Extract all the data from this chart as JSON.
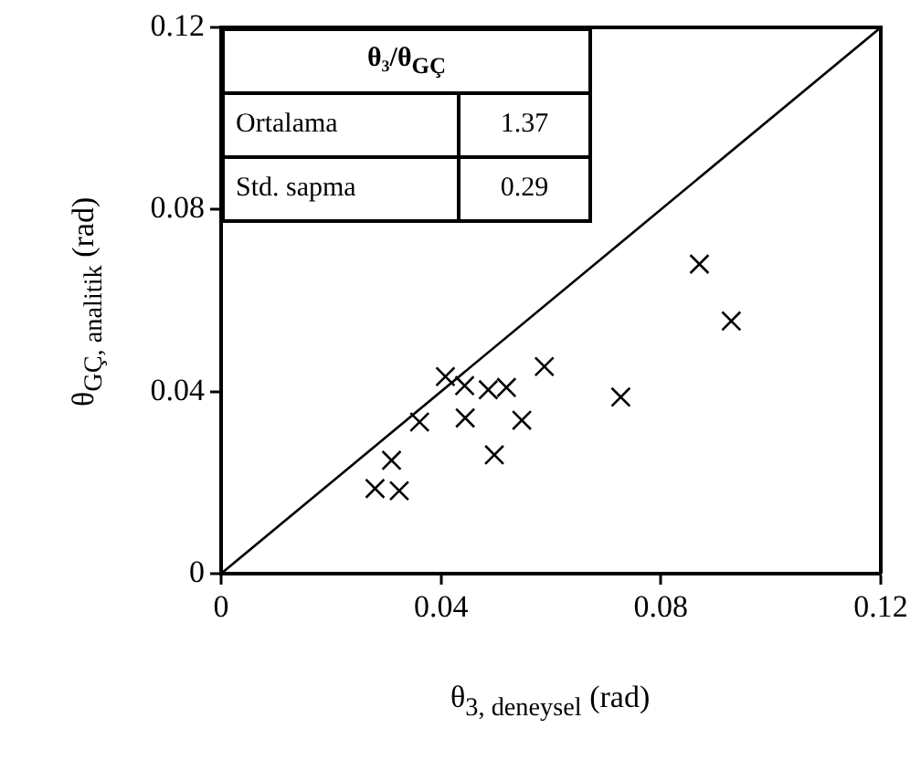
{
  "chart_data": {
    "type": "scatter",
    "xlabel": "θ$_{3, deneysel}$ (rad)",
    "ylabel": "θ$_{GÇ, analitik}$ (rad)",
    "xlim": [
      0,
      0.12
    ],
    "xticks": [
      0,
      0.04,
      0.08,
      0.12
    ],
    "ylim": [
      0,
      0.12
    ],
    "yticks": [
      0,
      0.04,
      0.08,
      0.12
    ],
    "grid": false,
    "legend": false,
    "marker": "cross",
    "series": [
      {
        "color": "#000000",
        "x": [
          0.0408,
          0.0443,
          0.0486,
          0.0519,
          0.0588,
          0.0727,
          0.0361,
          0.0444,
          0.0547,
          0.0497,
          0.031,
          0.028,
          0.0324,
          0.0928,
          0.087
        ],
        "values": [
          0.0433,
          0.0413,
          0.0404,
          0.0409,
          0.0455,
          0.0388,
          0.0333,
          0.0342,
          0.0337,
          0.0261,
          0.0249,
          0.0187,
          0.0182,
          0.0555,
          0.068
        ]
      },
      {
        "type": "line",
        "color": "#000000",
        "marker": "none",
        "x": [
          0,
          0.12
        ],
        "values": [
          0,
          0.12
        ]
      }
    ],
    "annotations": [
      "θ₃/θ$_{GÇ}$",
      "Ortalama",
      "1.37",
      "Std. sapma",
      "0.29"
    ]
  }
}
